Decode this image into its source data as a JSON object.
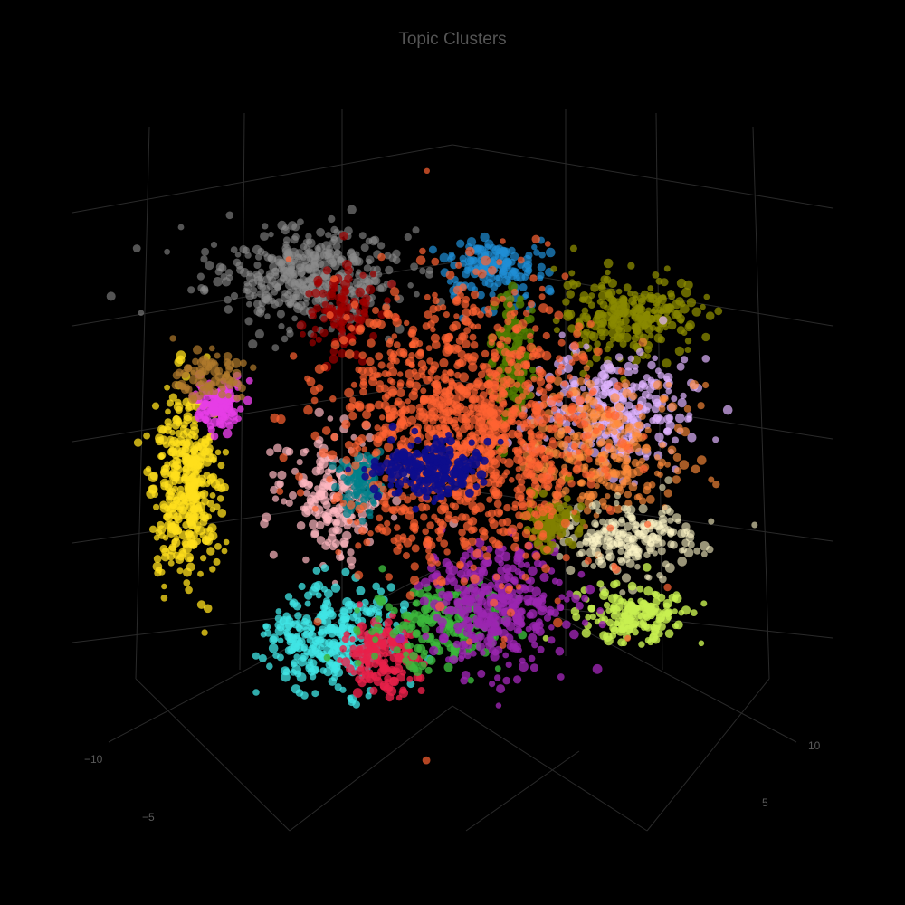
{
  "chart_data": {
    "type": "scatter",
    "title": "Topic Clusters",
    "three_d": true,
    "grid": true,
    "legend": "none",
    "background": "#000000",
    "axis_tick_labels": {
      "left_axis": [
        "−10",
        "−5"
      ],
      "right_axis": [
        "10",
        "5"
      ]
    },
    "clusters": [
      {
        "color": "#8c8c8c",
        "opacity": 0.6,
        "center": [
          -5.5,
          6.5
        ],
        "spread": [
          3.2,
          1.6
        ],
        "count": 420
      },
      {
        "color": "#a00000",
        "opacity": 0.7,
        "center": [
          -4.2,
          5.2
        ],
        "spread": [
          1.4,
          1.6
        ],
        "count": 110
      },
      {
        "color": "#1f8fd6",
        "opacity": 0.7,
        "center": [
          1.5,
          6.8
        ],
        "spread": [
          1.8,
          1.0
        ],
        "count": 150
      },
      {
        "color": "#8a8a00",
        "opacity": 0.75,
        "center": [
          6.5,
          5.0
        ],
        "spread": [
          2.4,
          1.3
        ],
        "count": 260
      },
      {
        "color": "#e0b3ff",
        "opacity": 0.7,
        "center": [
          6.0,
          1.5
        ],
        "spread": [
          2.4,
          1.8
        ],
        "count": 320
      },
      {
        "color": "#ff8c3a",
        "opacity": 0.65,
        "center": [
          5.5,
          0.0
        ],
        "spread": [
          2.8,
          2.6
        ],
        "count": 300
      },
      {
        "color": "#fff6c8",
        "opacity": 0.6,
        "center": [
          6.5,
          -3.2
        ],
        "spread": [
          2.2,
          1.2
        ],
        "count": 200
      },
      {
        "color": "#c8f050",
        "opacity": 0.8,
        "center": [
          6.8,
          -6.0
        ],
        "spread": [
          1.8,
          0.9
        ],
        "count": 160
      },
      {
        "color": "#ffdf1c",
        "opacity": 0.75,
        "center": [
          -9.8,
          -1.2
        ],
        "spread": [
          1.1,
          3.2
        ],
        "count": 380
      },
      {
        "color": "#e63de6",
        "opacity": 0.8,
        "center": [
          -8.6,
          1.8
        ],
        "spread": [
          0.9,
          0.8
        ],
        "count": 110
      },
      {
        "color": "#b07a2c",
        "opacity": 0.7,
        "center": [
          -9.0,
          2.8
        ],
        "spread": [
          1.0,
          0.8
        ],
        "count": 80
      },
      {
        "color": "#ffb8c0",
        "opacity": 0.7,
        "center": [
          -4.2,
          -1.6
        ],
        "spread": [
          1.8,
          2.0
        ],
        "count": 220
      },
      {
        "color": "#00808a",
        "opacity": 0.75,
        "center": [
          -3.5,
          -1.2
        ],
        "spread": [
          0.8,
          1.0
        ],
        "count": 90
      },
      {
        "color": "#40e6e6",
        "opacity": 0.75,
        "center": [
          -4.4,
          -6.8
        ],
        "spread": [
          2.2,
          1.8
        ],
        "count": 320
      },
      {
        "color": "#e8204a",
        "opacity": 0.8,
        "center": [
          -2.6,
          -7.6
        ],
        "spread": [
          1.2,
          1.2
        ],
        "count": 170
      },
      {
        "color": "#3cb83c",
        "opacity": 0.8,
        "center": [
          -0.6,
          -6.4
        ],
        "spread": [
          2.2,
          1.4
        ],
        "count": 180
      },
      {
        "color": "#9b26b0",
        "opacity": 0.8,
        "center": [
          1.6,
          -5.6
        ],
        "spread": [
          2.4,
          2.0
        ],
        "count": 360
      },
      {
        "color": "#4f7a00",
        "opacity": 0.85,
        "center": [
          2.2,
          3.4
        ],
        "spread": [
          0.7,
          2.4
        ],
        "count": 130
      },
      {
        "color": "#808000",
        "opacity": 0.85,
        "center": [
          3.6,
          -2.6
        ],
        "spread": [
          0.9,
          0.9
        ],
        "count": 90
      },
      {
        "color": "#ff6232",
        "opacity": 0.7,
        "center": [
          0.4,
          0.8
        ],
        "spread": [
          4.3,
          4.6
        ],
        "count": 1200
      },
      {
        "color": "#0d0d8c",
        "opacity": 0.9,
        "center": [
          -0.8,
          -0.6
        ],
        "spread": [
          1.9,
          0.9
        ],
        "count": 200
      }
    ]
  }
}
